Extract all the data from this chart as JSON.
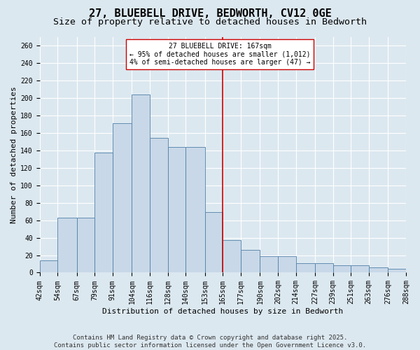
{
  "title1": "27, BLUEBELL DRIVE, BEDWORTH, CV12 0GE",
  "title2": "Size of property relative to detached houses in Bedworth",
  "xlabel": "Distribution of detached houses by size in Bedworth",
  "ylabel": "Number of detached properties",
  "footer1": "Contains HM Land Registry data © Crown copyright and database right 2025.",
  "footer2": "Contains public sector information licensed under the Open Government Licence v3.0.",
  "annotation_line1": "27 BLUEBELL DRIVE: 167sqm",
  "annotation_line2": "← 95% of detached houses are smaller (1,012)",
  "annotation_line3": "4% of semi-detached houses are larger (47) →",
  "bar_color": "#c8d8e8",
  "bar_edge_color": "#5080a8",
  "vline_x": 165,
  "vline_color": "#cc0000",
  "bin_edges": [
    42,
    54,
    67,
    79,
    91,
    104,
    116,
    128,
    140,
    153,
    165,
    177,
    190,
    202,
    214,
    227,
    239,
    251,
    263,
    276,
    288
  ],
  "values": [
    14,
    63,
    63,
    137,
    171,
    204,
    154,
    144,
    144,
    69,
    37,
    26,
    19,
    19,
    11,
    11,
    8,
    8,
    6,
    4
  ],
  "ylim": [
    0,
    270
  ],
  "yticks": [
    0,
    20,
    40,
    60,
    80,
    100,
    120,
    140,
    160,
    180,
    200,
    220,
    240,
    260
  ],
  "bg_color": "#dce8f0",
  "plot_bg_color": "#dce8f0",
  "grid_color": "#ffffff",
  "title_fontsize": 11,
  "subtitle_fontsize": 9.5,
  "axis_label_fontsize": 8,
  "tick_fontsize": 7,
  "annot_fontsize": 7,
  "footer_fontsize": 6.5
}
